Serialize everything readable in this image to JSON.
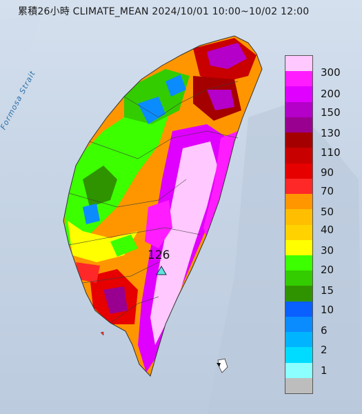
{
  "title": "累積26小時 CLIMATE_MEAN 2024/10/01 10:00~10/02 12:00",
  "sea_label": "Formosa Strait",
  "max_station": {
    "label": "126",
    "marker_color": "#5fe5d9"
  },
  "legend": {
    "ticks": [
      "300",
      "200",
      "150",
      "130",
      "110",
      "90",
      "70",
      "50",
      "40",
      "30",
      "20",
      "15",
      "10",
      "6",
      "2",
      "1"
    ],
    "colors_top_to_bottom": [
      "#ffc8ff",
      "#ff1cff",
      "#e000ff",
      "#b400c8",
      "#9a0090",
      "#a50000",
      "#c80000",
      "#e60000",
      "#ff2828",
      "#ff9600",
      "#ffbe00",
      "#ffd200",
      "#ffff00",
      "#3cff00",
      "#33cc00",
      "#2f9300",
      "#0a5fff",
      "#0a8cff",
      "#00b4ff",
      "#00dcff",
      "#8cffff",
      "#bdbdbd"
    ]
  }
}
